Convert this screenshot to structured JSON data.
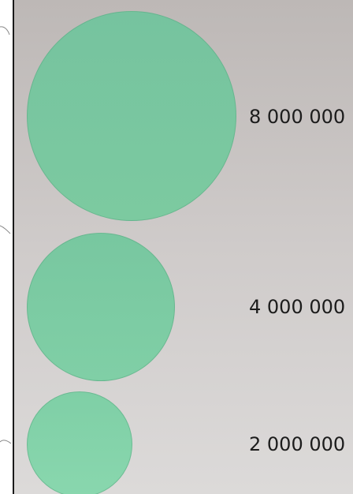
{
  "legend": {
    "circle_color": "#7ccaa0",
    "items": [
      {
        "value": 8000000,
        "label": "8 000 000"
      },
      {
        "value": 4000000,
        "label": "4 000 000"
      },
      {
        "value": 2000000,
        "label": "2 000 000"
      }
    ]
  }
}
